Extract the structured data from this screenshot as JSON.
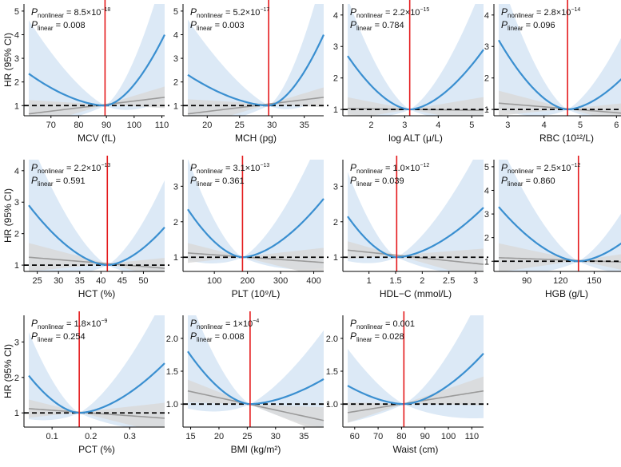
{
  "chart_data": {
    "type": "line",
    "title": "",
    "ylabel": "HR (95% CI)",
    "p_symbol": "P",
    "nonlinear_sub": "nonlinear",
    "linear_sub": "linear",
    "colors": {
      "curve": "#3a8fd0",
      "curve_ci": "#dce9f6",
      "linear": "#9a9a9a",
      "linear_ci": "#d9d9d9",
      "reference": "#e41a1c",
      "null_line": "#000000"
    },
    "panels": [
      {
        "xlabel": "MCV (fL)",
        "xlim": [
          62,
          111
        ],
        "xticks": [
          70,
          80,
          90,
          100,
          110
        ],
        "xtick_labels": [
          "70",
          "80",
          "90",
          "100",
          "110"
        ],
        "ylim": [
          0.57,
          5.3
        ],
        "yticks": [
          1,
          2,
          3,
          4,
          5
        ],
        "ytick_labels": [
          "1",
          "2",
          "3",
          "4",
          "5"
        ],
        "ref": 89.5,
        "hr_left": 2.35,
        "hr_right": 4.0,
        "lin_left": 0.65,
        "lin_right": 1.35,
        "p_nonlinear": {
          "mantissa": "8.5",
          "exp": "−18"
        },
        "p_linear": "0.008"
      },
      {
        "xlabel": "MCH (pg)",
        "xlim": [
          17,
          38
        ],
        "xticks": [
          20,
          25,
          30,
          35
        ],
        "xtick_labels": [
          "20",
          "25",
          "30",
          "35"
        ],
        "ylim": [
          0.57,
          5.3
        ],
        "yticks": [
          1,
          2,
          3,
          4,
          5
        ],
        "ytick_labels": [
          "1",
          "2",
          "3",
          "4",
          "5"
        ],
        "ref": 29.5,
        "hr_left": 2.3,
        "hr_right": 4.0,
        "lin_left": 0.65,
        "lin_right": 1.35,
        "p_nonlinear": {
          "mantissa": "5.2",
          "exp": "−17"
        },
        "p_linear": "0.003"
      },
      {
        "xlabel": "log ALT (μ/L)",
        "xlim": [
          1.3,
          5.35
        ],
        "xticks": [
          2,
          3,
          4,
          5
        ],
        "xtick_labels": [
          "2",
          "3",
          "4",
          "5"
        ],
        "ylim": [
          0.8,
          4.35
        ],
        "yticks": [
          1,
          2,
          3,
          4
        ],
        "ytick_labels": [
          "1",
          "2",
          "3",
          "4"
        ],
        "ref": 3.15,
        "hr_left": 2.7,
        "hr_right": 2.9,
        "lin_left": 1.03,
        "lin_right": 0.97,
        "p_nonlinear": {
          "mantissa": "2.2",
          "exp": "−15"
        },
        "p_linear": "0.784"
      },
      {
        "xlabel": "RBC (10¹²/L)",
        "xlim": [
          2.75,
          6.5
        ],
        "xticks": [
          3,
          4,
          5,
          6
        ],
        "xtick_labels": [
          "3",
          "4",
          "5",
          "6"
        ],
        "ylim": [
          0.8,
          4.35
        ],
        "yticks": [
          1,
          2,
          3,
          4
        ],
        "ytick_labels": [
          "1",
          "2",
          "3",
          "4"
        ],
        "ref": 4.65,
        "hr_left": 3.2,
        "hr_right": 2.4,
        "lin_left": 1.2,
        "lin_right": 0.85,
        "p_nonlinear": {
          "mantissa": "2.8",
          "exp": "−14"
        },
        "p_linear": "0.096"
      },
      {
        "xlabel": "HCT (%)",
        "xlim": [
          23,
          55
        ],
        "xticks": [
          25,
          30,
          35,
          40,
          45,
          50
        ],
        "xtick_labels": [
          "25",
          "30",
          "35",
          "40",
          "45",
          "50"
        ],
        "ylim": [
          0.8,
          4.35
        ],
        "yticks": [
          1,
          2,
          3,
          4
        ],
        "ytick_labels": [
          "1",
          "2",
          "3",
          "4"
        ],
        "ref": 41.5,
        "hr_left": 2.9,
        "hr_right": 2.2,
        "lin_left": 1.25,
        "lin_right": 0.9,
        "p_nonlinear": {
          "mantissa": "2.2",
          "exp": "−13"
        },
        "p_linear": "0.591"
      },
      {
        "xlabel": "PLT (10⁹/L)",
        "xlim": [
          20,
          430
        ],
        "xticks": [
          100,
          200,
          300,
          400
        ],
        "xtick_labels": [
          "100",
          "200",
          "300",
          "400"
        ],
        "ylim": [
          0.6,
          3.75
        ],
        "yticks": [
          1,
          2,
          3
        ],
        "ytick_labels": [
          "1",
          "2",
          "3"
        ],
        "ref": 185,
        "hr_left": 2.35,
        "hr_right": 2.65,
        "lin_left": 1.12,
        "lin_right": 0.85,
        "p_nonlinear": {
          "mantissa": "3.1",
          "exp": "−13"
        },
        "p_linear": "0.361"
      },
      {
        "xlabel": "HDL−C (mmol/L)",
        "xlim": [
          0.6,
          3.15
        ],
        "xticks": [
          1,
          1.5,
          2,
          2.5,
          3
        ],
        "xtick_labels": [
          "1",
          "1.5",
          "2",
          "2.5",
          "3"
        ],
        "ylim": [
          0.6,
          3.75
        ],
        "yticks": [
          1,
          2,
          3
        ],
        "ytick_labels": [
          "1",
          "2",
          "3"
        ],
        "ref": 1.52,
        "hr_left": 2.15,
        "hr_right": 2.4,
        "lin_left": 1.2,
        "lin_right": 0.8,
        "p_nonlinear": {
          "mantissa": "1.0",
          "exp": "−12"
        },
        "p_linear": "0.039"
      },
      {
        "xlabel": "HGB (g/L)",
        "xlim": [
          65,
          186
        ],
        "xticks": [
          90,
          120,
          150,
          180
        ],
        "xtick_labels": [
          "90",
          "120",
          "150",
          "180"
        ],
        "ylim": [
          0.57,
          5.3
        ],
        "yticks": [
          1,
          2,
          3,
          4,
          5
        ],
        "ytick_labels": [
          "1",
          "2",
          "3",
          "4",
          "5"
        ],
        "ref": 136,
        "hr_left": 3.3,
        "hr_right": 2.2,
        "lin_left": 1.15,
        "lin_right": 0.95,
        "p_nonlinear": {
          "mantissa": "2.5",
          "exp": "−12"
        },
        "p_linear": "0.860"
      },
      {
        "xlabel": "PCT (%)",
        "xlim": [
          0.04,
          0.39
        ],
        "xticks": [
          0.1,
          0.2,
          0.3
        ],
        "xtick_labels": [
          "0.1",
          "0.2",
          "0.3"
        ],
        "ylim": [
          0.6,
          3.75
        ],
        "yticks": [
          1,
          2,
          3
        ],
        "ytick_labels": [
          "1",
          "2",
          "3"
        ],
        "ref": 0.17,
        "hr_left": 2.05,
        "hr_right": 2.4,
        "lin_left": 1.12,
        "lin_right": 0.85,
        "p_nonlinear": {
          "mantissa": "1.8",
          "exp": "−9"
        },
        "p_linear": "0.254"
      },
      {
        "xlabel": "BMI (kg/m²)",
        "xlim": [
          14.5,
          38.5
        ],
        "xticks": [
          15,
          20,
          25,
          30,
          35
        ],
        "xtick_labels": [
          "15",
          "20",
          "25",
          "30",
          "35"
        ],
        "ylim": [
          0.65,
          2.35
        ],
        "yticks": [
          1.0,
          1.5,
          2.0
        ],
        "ytick_labels": [
          "1.0",
          "1.5",
          "2.0"
        ],
        "ref": 25.5,
        "hr_left": 1.8,
        "hr_right": 1.38,
        "lin_left": 1.2,
        "lin_right": 0.75,
        "p_nonlinear": {
          "mantissa": "1",
          "exp": "−4"
        },
        "p_linear": "0.008"
      },
      {
        "xlabel": "Waist (cm)",
        "xlim": [
          57,
          115
        ],
        "xticks": [
          60,
          70,
          80,
          90,
          100,
          110
        ],
        "xtick_labels": [
          "60",
          "70",
          "80",
          "90",
          "100",
          "110"
        ],
        "ylim": [
          0.65,
          2.35
        ],
        "yticks": [
          1.0,
          1.5,
          2.0
        ],
        "ytick_labels": [
          "1.0",
          "1.5",
          "2.0"
        ],
        "ref": 81,
        "hr_left": 1.28,
        "hr_right": 1.77,
        "lin_left": 0.87,
        "lin_right": 1.2,
        "p_nonlinear": {
          "value": "0.001"
        },
        "p_linear": "0.028"
      }
    ]
  }
}
